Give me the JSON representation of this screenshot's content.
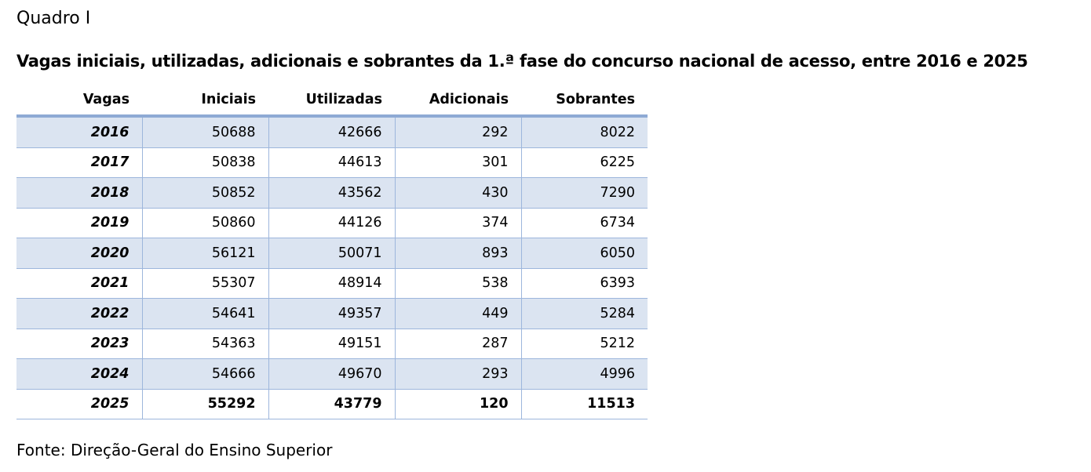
{
  "caption": "Quadro I",
  "title": "Vagas iniciais, utilizadas, adicionais e sobrantes da 1.ª fase do concurso nacional de acesso, entre 2016 e 2025",
  "table": {
    "headers": [
      "Vagas",
      "Iniciais",
      "Utilizadas",
      "Adicionais",
      "Sobrantes"
    ],
    "rows": [
      [
        "2016",
        "50688",
        "42666",
        "292",
        "8022"
      ],
      [
        "2017",
        "50838",
        "44613",
        "301",
        "6225"
      ],
      [
        "2018",
        "50852",
        "43562",
        "430",
        "7290"
      ],
      [
        "2019",
        "50860",
        "44126",
        "374",
        "6734"
      ],
      [
        "2020",
        "56121",
        "50071",
        "893",
        "6050"
      ],
      [
        "2021",
        "55307",
        "48914",
        "538",
        "6393"
      ],
      [
        "2022",
        "54641",
        "49357",
        "449",
        "5284"
      ],
      [
        "2023",
        "54363",
        "49151",
        "287",
        "5212"
      ],
      [
        "2024",
        "54666",
        "49670",
        "293",
        "4996"
      ],
      [
        "2025",
        "55292",
        "43779",
        "120",
        "11513"
      ]
    ],
    "stripe_color": "#dbe4f1",
    "border_color": "#8eaad4"
  },
  "source": "Fonte: Direção-Geral do Ensino Superior"
}
